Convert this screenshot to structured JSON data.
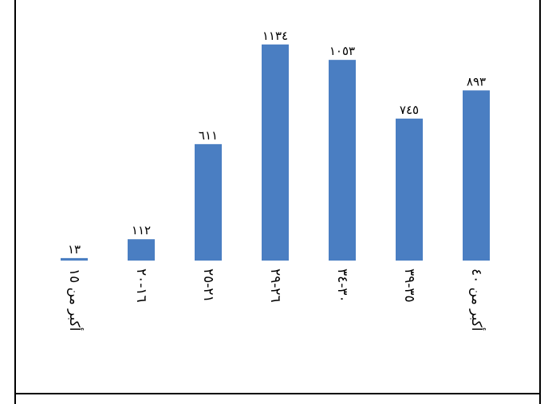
{
  "chart_data": {
    "type": "bar",
    "categories": [
      "أكبر من ١٥",
      "١٦-٢٠",
      "٢١-٢٥",
      "٢٦-٢٩",
      "٣٠-٣٤",
      "٣٥-٣٩",
      "أكبر من ٤٠"
    ],
    "values": [
      13,
      112,
      611,
      1134,
      1053,
      745,
      893
    ],
    "data_labels": [
      "١٣",
      "١١٢",
      "٦١١",
      "١١٣٤",
      "١٠٥٣",
      "٧٤٥",
      "٨٩٣"
    ],
    "title": "",
    "xlabel": "",
    "ylabel": "",
    "ylim": [
      0,
      1200
    ],
    "grid": false,
    "legend": "none",
    "colors": {
      "bar": "#4a7ec2",
      "frame": "#000000"
    }
  }
}
